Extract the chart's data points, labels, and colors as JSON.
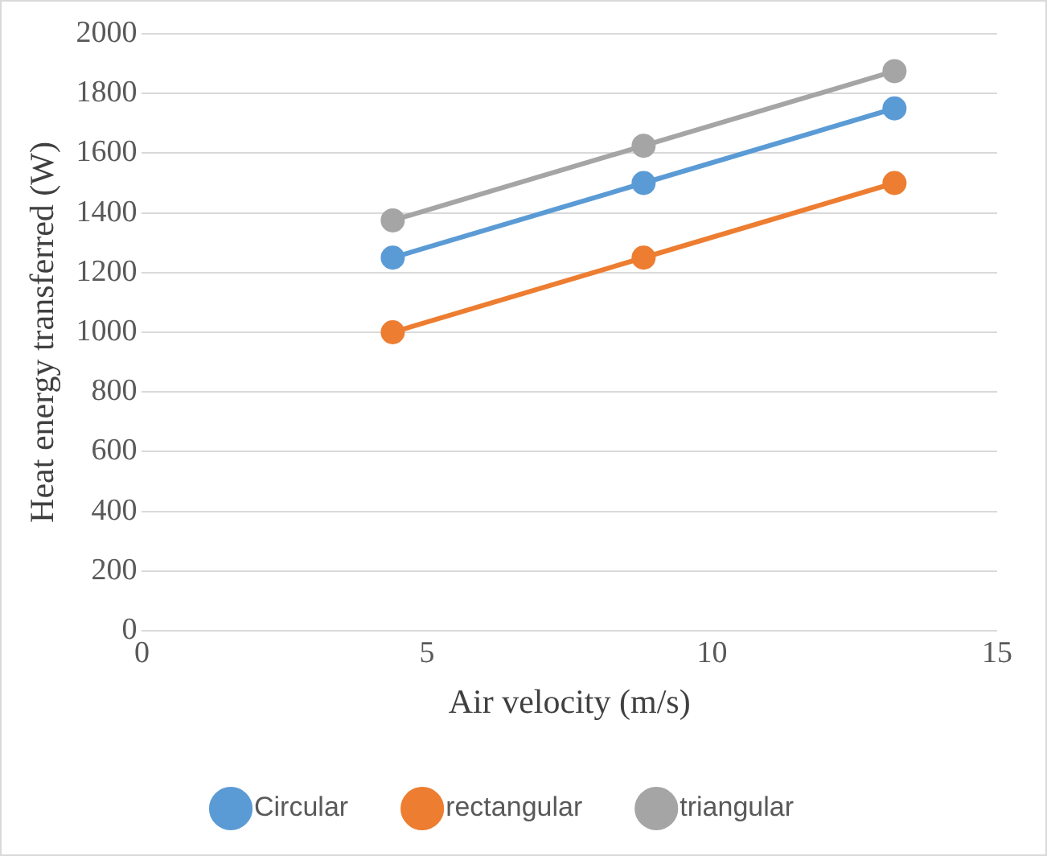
{
  "chart_data": {
    "type": "line",
    "xlabel": "Air velocity (m/s)",
    "ylabel": "Heat energy transferred (W)",
    "x": [
      4.4,
      8.8,
      13.2
    ],
    "series": [
      {
        "name": "Circular",
        "color": "#5b9bd5",
        "values": [
          1250,
          1500,
          1750
        ]
      },
      {
        "name": "rectangular",
        "color": "#ed7d31",
        "values": [
          1000,
          1250,
          1500
        ]
      },
      {
        "name": "triangular",
        "color": "#a5a5a5",
        "values": [
          1375,
          1625,
          1875
        ]
      }
    ],
    "xlim": [
      0,
      15
    ],
    "xticks": [
      0,
      5,
      10,
      15
    ],
    "ylim": [
      0,
      2000
    ],
    "yticks": [
      0,
      200,
      400,
      600,
      800,
      1000,
      1200,
      1400,
      1600,
      1800,
      2000
    ],
    "grid": "y",
    "legend": "bottom",
    "marker": "circle",
    "line_style": "solid"
  }
}
